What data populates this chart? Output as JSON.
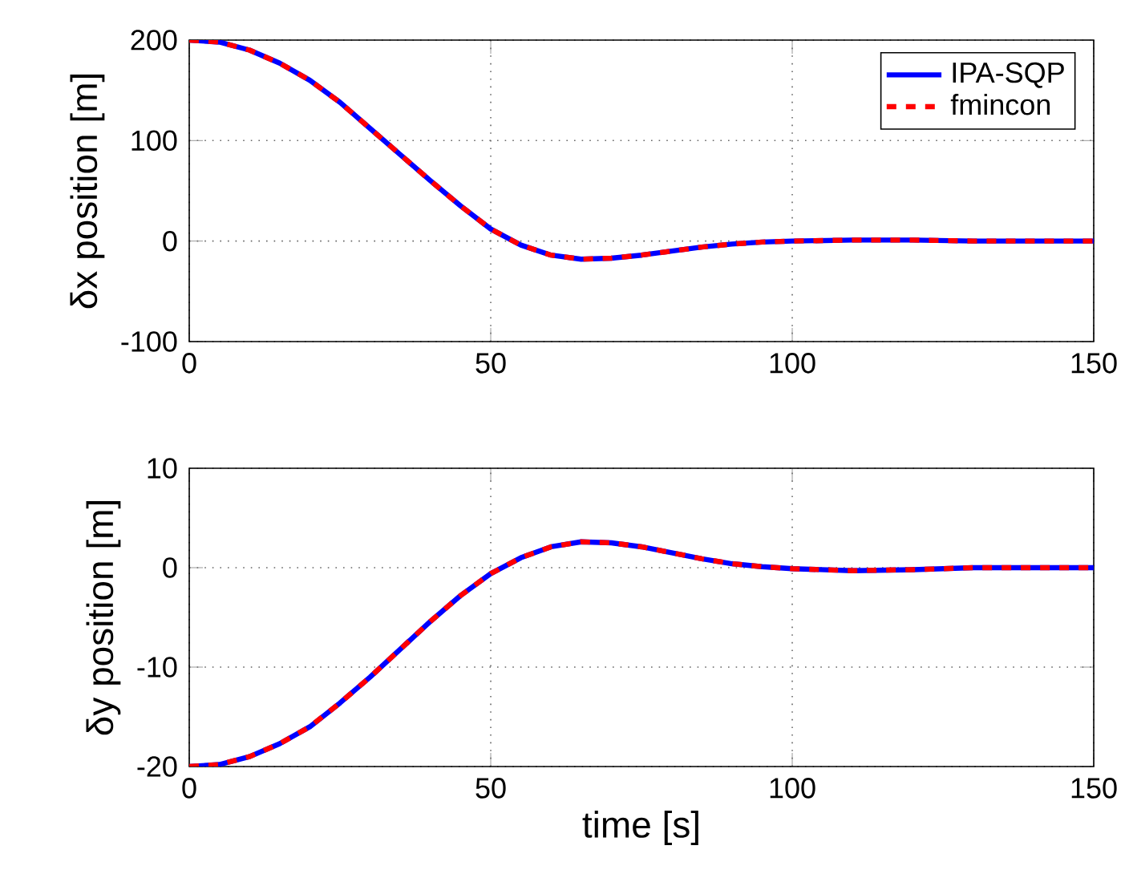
{
  "chart_data": [
    {
      "type": "line",
      "ylabel": "δx position [m]",
      "xlim": [
        0,
        150
      ],
      "ylim": [
        -100,
        200
      ],
      "xticks": [
        0,
        50,
        100,
        150
      ],
      "yticks": [
        -100,
        0,
        100,
        200
      ],
      "grid": true,
      "legend": "top right",
      "marker": "none",
      "x": [
        0,
        5,
        10,
        15,
        20,
        25,
        30,
        35,
        40,
        45,
        50,
        55,
        60,
        65,
        70,
        75,
        80,
        85,
        90,
        95,
        100,
        110,
        120,
        130,
        140,
        150
      ],
      "series": [
        {
          "name": "IPA-SQP",
          "color": "#0000ff",
          "line_style": "solid",
          "values": [
            200,
            198,
            190,
            177,
            160,
            138,
            112,
            86,
            60,
            35,
            12,
            -4,
            -14,
            -18,
            -17,
            -14,
            -10,
            -6,
            -3,
            -1,
            0,
            1,
            1,
            0,
            0,
            0
          ]
        },
        {
          "name": "fmincon",
          "color": "#ff0000",
          "line_style": "dashed",
          "values": [
            200,
            198,
            190,
            177,
            160,
            138,
            112,
            86,
            60,
            35,
            12,
            -4,
            -14,
            -18,
            -17,
            -14,
            -10,
            -6,
            -3,
            -1,
            0,
            1,
            1,
            0,
            0,
            0
          ]
        }
      ]
    },
    {
      "type": "line",
      "ylabel": "δy position [m]",
      "xlabel": "time [s]",
      "xlim": [
        0,
        150
      ],
      "ylim": [
        -20,
        10
      ],
      "xticks": [
        0,
        50,
        100,
        150
      ],
      "yticks": [
        -20,
        -10,
        0,
        10
      ],
      "grid": true,
      "marker": "none",
      "x": [
        0,
        5,
        10,
        15,
        20,
        25,
        30,
        35,
        40,
        45,
        50,
        55,
        60,
        65,
        70,
        75,
        80,
        85,
        90,
        95,
        100,
        110,
        120,
        130,
        140,
        150
      ],
      "series": [
        {
          "color": "#0000ff",
          "line_style": "solid",
          "values": [
            -20,
            -19.8,
            -19,
            -17.7,
            -16,
            -13.6,
            -11,
            -8.2,
            -5.4,
            -2.8,
            -0.6,
            1,
            2.1,
            2.6,
            2.5,
            2.1,
            1.5,
            0.9,
            0.4,
            0.1,
            -0.1,
            -0.3,
            -0.2,
            0,
            0,
            0
          ]
        },
        {
          "color": "#ff0000",
          "line_style": "dashed",
          "values": [
            -20,
            -19.8,
            -19,
            -17.7,
            -16,
            -13.6,
            -11,
            -8.2,
            -5.4,
            -2.8,
            -0.6,
            1,
            2.1,
            2.6,
            2.5,
            2.1,
            1.5,
            0.9,
            0.4,
            0.1,
            -0.1,
            -0.3,
            -0.2,
            0,
            0,
            0
          ]
        }
      ]
    }
  ]
}
